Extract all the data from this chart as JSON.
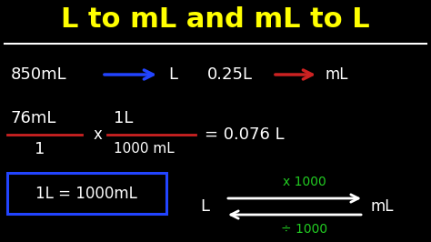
{
  "bg_color": "#000000",
  "title": "L to mL and mL to L",
  "title_color": "#FFFF00",
  "title_fontsize": 22,
  "line1_left_text": "850mL",
  "line1_right_label": "L",
  "line1_right_text": "0.25L",
  "line1_right_unit": "mL",
  "line2_num": "76mL",
  "line2_den": "1",
  "line2_frac_num": "1L",
  "line2_frac_den": "1000 mL",
  "line2_result": "= 0.076 L",
  "line3_box_text": "1L = 1000mL",
  "line3_L": "L",
  "line3_mL": "mL",
  "line3_x1000": "x 1000",
  "line3_div1000": "÷ 1000",
  "blue_color": "#2244FF",
  "red_arrow_color": "#CC2222",
  "red_line_color": "#CC2222",
  "green_color": "#22CC22",
  "box_color": "#2244FF",
  "white_color": "#FFFFFF"
}
